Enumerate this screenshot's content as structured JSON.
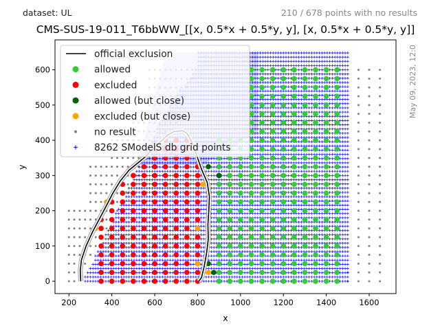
{
  "header": {
    "dataset_label": "dataset: UL",
    "points_note": "210 / 678 points with no results",
    "date_stamp": "May 09, 2023, 12:0"
  },
  "chart_data": {
    "type": "scatter",
    "title": "CMS-SUS-19-011_T6bbWW_[[x, 0.5*x + 0.5*y, y], [x, 0.5*x + 0.5*y, y]]",
    "xlabel": "x",
    "ylabel": "y",
    "xlim": [
      135,
      1725
    ],
    "ylim": [
      -35,
      685
    ],
    "xticks": [
      200,
      400,
      600,
      800,
      1000,
      1200,
      1400,
      1600
    ],
    "yticks": [
      0,
      100,
      200,
      300,
      400,
      500,
      600
    ],
    "grid": false,
    "legend_position": "top-left",
    "legend": [
      {
        "label": "official exclusion",
        "marker": "line",
        "color": "#000000"
      },
      {
        "label": "allowed",
        "marker": "dot",
        "color": "#32cd32"
      },
      {
        "label": "excluded",
        "marker": "dot",
        "color": "#ff0000"
      },
      {
        "label": "allowed (but close)",
        "marker": "dot",
        "color": "#006400"
      },
      {
        "label": "excluded (but close)",
        "marker": "dot",
        "color": "#ffa500"
      },
      {
        "label": "no result",
        "marker": "small-dot",
        "color": "#808080"
      },
      {
        "label": "8262 SModelS db grid points",
        "marker": "plus",
        "color": "#0000ff"
      }
    ],
    "colors": {
      "allowed": "#32cd32",
      "excluded": "#ff0000",
      "allowed_close": "#006400",
      "excluded_close": "#ffa500",
      "no_result": "#808080",
      "grid": "#0000ff",
      "exclusion": "#000000"
    },
    "grid_points_region": {
      "x_range": [
        800,
        1500
      ],
      "y_range": [
        0,
        650
      ],
      "spacing": 12
    },
    "exclusion_contour": [
      [
        255,
        0
      ],
      [
        253,
        30
      ],
      [
        258,
        60
      ],
      [
        280,
        100
      ],
      [
        310,
        140
      ],
      [
        345,
        180
      ],
      [
        375,
        215
      ],
      [
        405,
        250
      ],
      [
        440,
        285
      ],
      [
        480,
        315
      ],
      [
        520,
        335
      ],
      [
        560,
        355
      ],
      [
        590,
        375
      ],
      [
        625,
        395
      ],
      [
        660,
        415
      ],
      [
        690,
        425
      ],
      [
        730,
        427
      ],
      [
        750,
        420
      ],
      [
        765,
        405
      ],
      [
        780,
        385
      ],
      [
        800,
        350
      ],
      [
        820,
        315
      ],
      [
        845,
        280
      ],
      [
        855,
        240
      ],
      [
        852,
        200
      ],
      [
        848,
        160
      ],
      [
        850,
        120
      ],
      [
        842,
        80
      ],
      [
        830,
        40
      ],
      [
        818,
        10
      ],
      [
        805,
        0
      ]
    ],
    "allowed_columns": [
      900,
      950,
      1000,
      1050,
      1100,
      1150,
      1200,
      1250,
      1300,
      1350,
      1400,
      1450
    ],
    "excluded_columns": [
      350,
      400,
      450,
      500,
      550,
      600,
      650,
      700,
      750,
      800
    ],
    "rows": [
      0,
      25,
      50,
      75,
      100,
      125,
      150,
      175,
      200,
      225,
      250,
      275,
      300,
      325,
      350,
      375,
      400
    ],
    "excluded_close_points": [
      [
        800,
        150
      ],
      [
        800,
        50
      ],
      [
        825,
        275
      ],
      [
        825,
        25
      ],
      [
        850,
        25
      ],
      [
        775,
        375
      ],
      [
        625,
        375
      ],
      [
        550,
        350
      ],
      [
        375,
        225
      ],
      [
        325,
        150
      ]
    ],
    "allowed_close_points": [
      [
        850,
        50
      ],
      [
        875,
        25
      ],
      [
        850,
        325
      ],
      [
        900,
        300
      ]
    ],
    "no_result_points": {
      "left_columns": [
        200,
        225,
        250,
        275,
        300,
        325,
        350,
        375,
        400,
        425,
        450,
        475,
        500,
        525,
        550,
        575,
        600,
        625,
        650,
        675,
        700,
        725,
        750,
        775
      ],
      "right_columns": [
        1500,
        1550,
        1600,
        1650
      ],
      "rows": [
        0,
        25,
        50,
        75,
        100,
        125,
        150,
        175,
        200,
        225,
        250,
        275,
        300,
        325,
        350,
        375,
        400,
        425,
        450,
        475,
        500,
        525,
        550,
        575,
        600
      ]
    }
  }
}
